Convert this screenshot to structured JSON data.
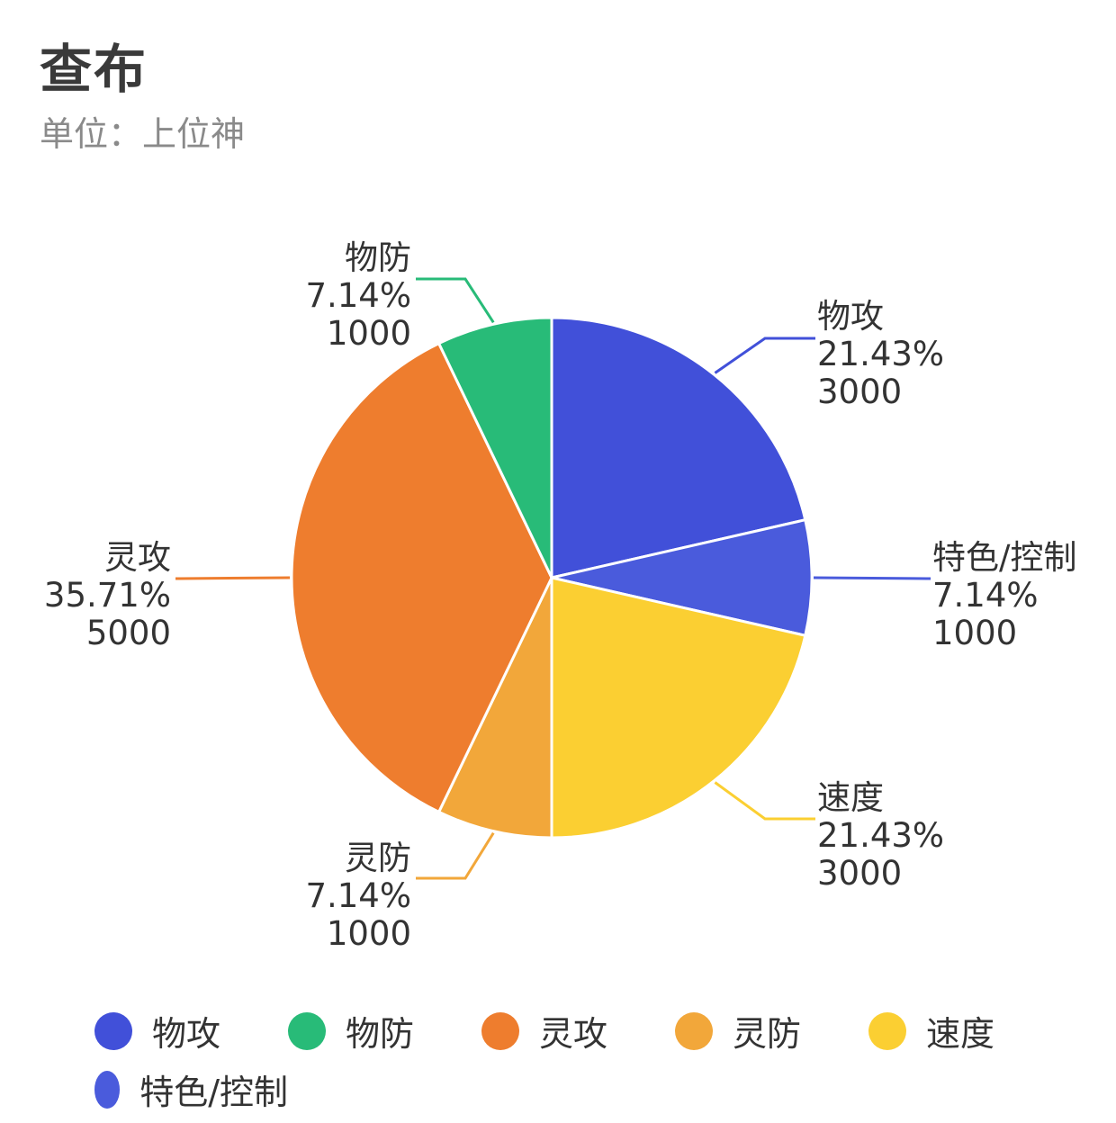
{
  "title": "查布",
  "subtitle": "单位：上位神",
  "chart_data": {
    "type": "pie",
    "title": "查布",
    "subtitle": "单位：上位神",
    "slices": [
      {
        "label": "物攻",
        "value": 3000,
        "percent": "21.43%",
        "color": "#4150d9"
      },
      {
        "label": "特色/控制",
        "value": 1000,
        "percent": "7.14%",
        "color": "#4a5bdc"
      },
      {
        "label": "速度",
        "value": 3000,
        "percent": "21.43%",
        "color": "#fbcf32"
      },
      {
        "label": "灵防",
        "value": 1000,
        "percent": "7.14%",
        "color": "#f2a73a"
      },
      {
        "label": "灵攻",
        "value": 5000,
        "percent": "35.71%",
        "color": "#ee7d2e"
      },
      {
        "label": "物防",
        "value": 1000,
        "percent": "7.14%",
        "color": "#28bb78"
      }
    ],
    "legend": {
      "position": "bottom",
      "items": [
        {
          "label": "物攻",
          "color": "#4150d9"
        },
        {
          "label": "物防",
          "color": "#28bb78"
        },
        {
          "label": "灵攻",
          "color": "#ee7d2e"
        },
        {
          "label": "灵防",
          "color": "#f2a73a"
        },
        {
          "label": "速度",
          "color": "#fbcf32"
        },
        {
          "label": "特色/控制",
          "color": "#4a5bdc"
        }
      ]
    }
  }
}
